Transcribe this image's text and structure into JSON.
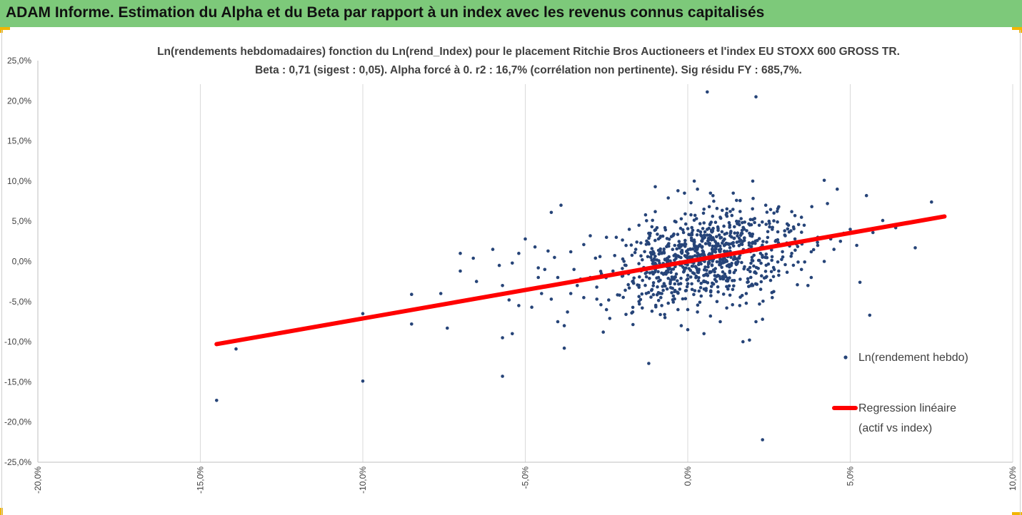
{
  "header": {
    "title": "ADAM Informe. Estimation du Alpha et du Beta par rapport à un index avec les revenus connus capitalisés"
  },
  "chart_data": {
    "type": "scatter",
    "title": "Ln(rendements hebdomadaires) fonction du Ln(rend_Index) pour le placement Ritchie Bros Auctioneers  et l'index EU STOXX 600 GROSS TR.",
    "subtitle": "Beta : 0,71 (sigest : 0,05). Alpha forcé à 0. r2 : 16,7% (corrélation non pertinente). Sig résidu FY : 685,7%.",
    "xlabel": "",
    "ylabel": "",
    "xlim": [
      -0.2,
      0.1
    ],
    "ylim": [
      -0.25,
      0.25
    ],
    "x_ticks": [
      "-20,0%",
      "-15,0%",
      "-10,0%",
      "-5,0%",
      "0,0%",
      "5,0%",
      "10,0%"
    ],
    "y_ticks": [
      "25,0%",
      "20,0%",
      "15,0%",
      "10,0%",
      "5,0%",
      "0,0%",
      "-5,0%",
      "-10,0%",
      "-15,0%",
      "-20,0%",
      "-25,0%"
    ],
    "grid": "vertical",
    "legend_placement": "right",
    "series": [
      {
        "name": "Ln(rendement hebdo)",
        "kind": "scatter",
        "color": "#264478",
        "points": [
          [
            -0.145,
            -0.173
          ],
          [
            -0.139,
            -0.109
          ],
          [
            -0.1,
            -0.149
          ],
          [
            -0.1,
            -0.065
          ],
          [
            -0.085,
            -0.041
          ],
          [
            -0.085,
            -0.078
          ],
          [
            -0.076,
            -0.04
          ],
          [
            -0.074,
            -0.083
          ],
          [
            -0.07,
            -0.012
          ],
          [
            -0.07,
            0.01
          ],
          [
            -0.066,
            0.004
          ],
          [
            -0.065,
            -0.025
          ],
          [
            -0.06,
            0.015
          ],
          [
            -0.057,
            -0.095
          ],
          [
            -0.057,
            -0.143
          ],
          [
            -0.057,
            -0.03
          ],
          [
            -0.055,
            -0.048
          ],
          [
            -0.054,
            -0.09
          ],
          [
            -0.054,
            -0.002
          ],
          [
            -0.052,
            -0.055
          ],
          [
            -0.05,
            0.028
          ],
          [
            -0.048,
            -0.057
          ],
          [
            -0.046,
            -0.02
          ],
          [
            -0.045,
            -0.04
          ],
          [
            -0.044,
            -0.01
          ],
          [
            -0.042,
            0.061
          ],
          [
            -0.04,
            -0.02
          ],
          [
            -0.04,
            -0.075
          ],
          [
            -0.039,
            0.07
          ],
          [
            -0.038,
            -0.08
          ],
          [
            -0.038,
            -0.108
          ],
          [
            -0.037,
            -0.063
          ],
          [
            -0.036,
            -0.04
          ],
          [
            -0.035,
            -0.01
          ],
          [
            -0.034,
            -0.03
          ],
          [
            -0.033,
            -0.022
          ],
          [
            -0.032,
            -0.045
          ],
          [
            -0.03,
            -0.02
          ],
          [
            -0.028,
            -0.032
          ],
          [
            -0.027,
            0.006
          ],
          [
            -0.026,
            -0.088
          ],
          [
            -0.025,
            -0.06
          ],
          [
            -0.023,
            -0.012
          ],
          [
            -0.022,
            0.03
          ],
          [
            -0.021,
            -0.042
          ],
          [
            -0.02,
            -0.018
          ],
          [
            -0.019,
            -0.005
          ],
          [
            -0.018,
            -0.033
          ],
          [
            -0.017,
            -0.025
          ],
          [
            -0.016,
            0.015
          ],
          [
            -0.015,
            -0.05
          ],
          [
            -0.014,
            0.002
          ],
          [
            -0.013,
            -0.015
          ],
          [
            -0.012,
            -0.127
          ],
          [
            -0.011,
            -0.035
          ],
          [
            -0.01,
            0.093
          ],
          [
            -0.009,
            -0.02
          ],
          [
            -0.008,
            0.01
          ],
          [
            -0.008,
            -0.04
          ],
          [
            -0.007,
            -0.07
          ],
          [
            -0.006,
            0.079
          ],
          [
            -0.005,
            -0.01
          ],
          [
            -0.004,
            0.02
          ],
          [
            -0.004,
            -0.028
          ],
          [
            -0.003,
            0.088
          ],
          [
            -0.002,
            0.053
          ],
          [
            0.001,
            0.073
          ],
          [
            0.002,
            0.1
          ],
          [
            0.005,
            0.065
          ],
          [
            0.005,
            -0.09
          ],
          [
            0.006,
            0.04
          ],
          [
            0.007,
            0.085
          ],
          [
            0.015,
            0.076
          ],
          [
            0.02,
            0.052
          ],
          [
            0.02,
            0.1
          ],
          [
            0.021,
            0.205
          ],
          [
            0.0,
            -0.06
          ],
          [
            0.012,
            0.035
          ],
          [
            -0.02,
            0.003
          ],
          [
            0.032,
            0.062
          ],
          [
            0.03,
            -0.004
          ],
          [
            0.033,
            0.057
          ],
          [
            0.037,
            -0.03
          ],
          [
            0.038,
            0.012
          ],
          [
            0.04,
            0.02
          ],
          [
            0.042,
            0.101
          ],
          [
            0.043,
            0.072
          ],
          [
            0.046,
            0.09
          ],
          [
            0.048,
            0.035
          ],
          [
            0.052,
            0.02
          ],
          [
            0.053,
            -0.026
          ],
          [
            0.055,
            0.082
          ],
          [
            0.056,
            -0.067
          ],
          [
            0.057,
            0.036
          ],
          [
            0.06,
            0.051
          ],
          [
            0.064,
            0.042
          ],
          [
            0.07,
            0.017
          ],
          [
            0.075,
            0.074
          ],
          [
            0.023,
            -0.222
          ],
          [
            0.006,
            0.211
          ],
          [
            0.017,
            -0.1
          ],
          [
            0.019,
            -0.098
          ],
          [
            0.018,
            -0.04
          ],
          [
            0.021,
            -0.075
          ],
          [
            0.023,
            -0.072
          ],
          [
            0.01,
            -0.075
          ],
          [
            -0.002,
            -0.08
          ],
          [
            0.0,
            -0.085
          ],
          [
            0.014,
            0.085
          ],
          [
            0.024,
            0.07
          ],
          [
            0.025,
            0.05
          ],
          [
            0.028,
            0.068
          ],
          [
            0.031,
            0.045
          ],
          [
            0.035,
            0.055
          ],
          [
            0.012,
            0.06
          ],
          [
            0.003,
            0.09
          ],
          [
            -0.001,
            0.085
          ],
          [
            0.008,
            0.075
          ],
          [
            0.009,
            0.066
          ],
          [
            0.027,
            0.025
          ],
          [
            -0.025,
            0.03
          ],
          [
            -0.03,
            0.032
          ],
          [
            -0.032,
            0.021
          ],
          [
            -0.036,
            0.012
          ],
          [
            -0.041,
            0.005
          ],
          [
            -0.043,
            0.013
          ],
          [
            -0.047,
            0.018
          ],
          [
            -0.052,
            0.01
          ],
          [
            -0.058,
            -0.005
          ],
          [
            -0.046,
            -0.008
          ],
          [
            -0.042,
            -0.047
          ],
          [
            -0.024,
            -0.071
          ],
          [
            -0.019,
            -0.066
          ],
          [
            -0.014,
            -0.058
          ],
          [
            -0.011,
            -0.062
          ],
          [
            -0.006,
            -0.052
          ],
          [
            -0.01,
            0.062
          ],
          [
            -0.015,
            0.045
          ],
          [
            -0.018,
            0.04
          ],
          [
            -0.012,
            0.035
          ],
          [
            -0.009,
            0.028
          ],
          [
            -0.007,
            0.042
          ],
          [
            -0.004,
            0.05
          ],
          [
            0.001,
            0.058
          ],
          [
            0.005,
            0.048
          ],
          [
            0.01,
            0.055
          ],
          [
            0.015,
            0.05
          ],
          [
            0.022,
            0.045
          ],
          [
            0.026,
            0.04
          ],
          [
            0.03,
            0.032
          ],
          [
            0.033,
            0.028
          ],
          [
            0.036,
            0.025
          ],
          [
            0.04,
            0.03
          ],
          [
            0.044,
            0.028
          ],
          [
            0.047,
            0.025
          ],
          [
            0.05,
            0.04
          ],
          [
            0.009,
            -0.05
          ],
          [
            0.013,
            -0.042
          ],
          [
            0.016,
            -0.055
          ],
          [
            0.02,
            -0.03
          ],
          [
            0.024,
            -0.02
          ],
          [
            0.028,
            -0.012
          ],
          [
            0.035,
            -0.01
          ],
          [
            0.038,
            -0.02
          ],
          [
            0.042,
            0.0
          ],
          [
            0.026,
            -0.045
          ],
          [
            0.003,
            -0.063
          ],
          [
            -0.003,
            -0.06
          ],
          [
            -0.008,
            -0.055
          ],
          [
            0.007,
            -0.068
          ],
          [
            0.012,
            -0.058
          ],
          [
            0.018,
            -0.052
          ],
          [
            0.032,
            0.01
          ],
          [
            0.045,
            0.015
          ]
        ]
      },
      {
        "name": "Regression linéaire (actif vs index)",
        "kind": "line",
        "color": "#ff0000",
        "points": [
          [
            -0.145,
            -0.103
          ],
          [
            0.079,
            0.056
          ]
        ]
      }
    ]
  },
  "legend": {
    "scatter_label": "Ln(rendement hebdo)",
    "line_label_1": "Regression linéaire",
    "line_label_2": "(actif vs index)"
  }
}
